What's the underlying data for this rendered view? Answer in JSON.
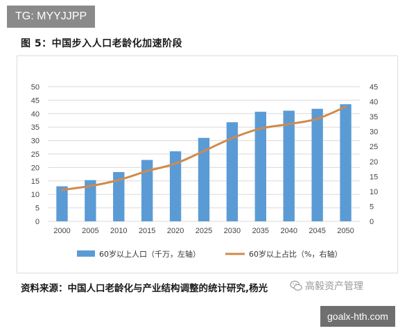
{
  "tags": {
    "top": "TG: MYYJJPP",
    "bottom": "goalx-hth.com"
  },
  "figure": {
    "title": "图 5：中国步入人口老龄化加速阶段"
  },
  "source": {
    "text": "资料来源：中国人口老龄化与产业结构调整的统计研究,杨光"
  },
  "watermark": {
    "text": "高毅资产管理",
    "icon": "wechat-icon"
  },
  "chart_data": {
    "type": "bar",
    "categories": [
      "2000",
      "2005",
      "2010",
      "2015",
      "2020",
      "2025",
      "2030",
      "2035",
      "2040",
      "2045",
      "2050"
    ],
    "series": [
      {
        "name": "60岁以上人口（千万，左轴）",
        "type": "bar",
        "axis": "left",
        "color": "#5b9bd5",
        "values": [
          13,
          15.3,
          18.3,
          22.8,
          26,
          31,
          36.8,
          40.7,
          41.1,
          41.8,
          43.5
        ]
      },
      {
        "name": "60岁以上占比（%，右轴）",
        "type": "line",
        "axis": "right",
        "color": "#d08a4b",
        "values": [
          10.5,
          11.8,
          13.8,
          16.8,
          19.3,
          23.5,
          27.8,
          31,
          32.5,
          34.3,
          38.3
        ]
      }
    ],
    "y_left": {
      "min": 0,
      "max": 50,
      "ticks": [
        0,
        5,
        10,
        15,
        20,
        25,
        30,
        35,
        40,
        45,
        50
      ]
    },
    "y_right": {
      "min": 0,
      "max": 45,
      "ticks": [
        0,
        5,
        10,
        15,
        20,
        25,
        30,
        35,
        40,
        45
      ]
    },
    "grid": true,
    "legend_position": "bottom"
  }
}
